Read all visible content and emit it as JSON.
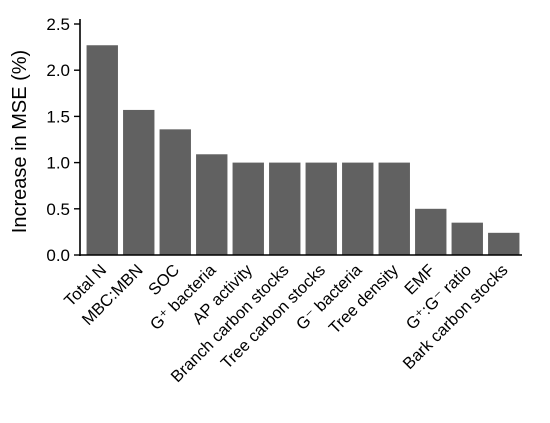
{
  "chart_data": {
    "type": "bar",
    "categories": [
      "Total N",
      "MBC:MBN",
      "SOC",
      "G⁺ bacteria",
      "AP activity",
      "Branch carbon stocks",
      "Tree carbon stocks",
      "G⁻ bacteria",
      "Tree density",
      "EMF",
      "G⁺:G⁻ ratio",
      "Bark carbon stocks"
    ],
    "values": [
      2.27,
      1.57,
      1.36,
      1.09,
      1.0,
      1.0,
      1.0,
      1.0,
      1.0,
      0.5,
      0.35,
      0.24
    ],
    "ylabel": "Increase in MSE (%)",
    "xlabel": "",
    "ylim": [
      0,
      2.5
    ],
    "yticks": [
      "0.0",
      "0.5",
      "1.0",
      "1.5",
      "2.0",
      "2.5"
    ],
    "bar_color": "#616161",
    "grid": false
  }
}
